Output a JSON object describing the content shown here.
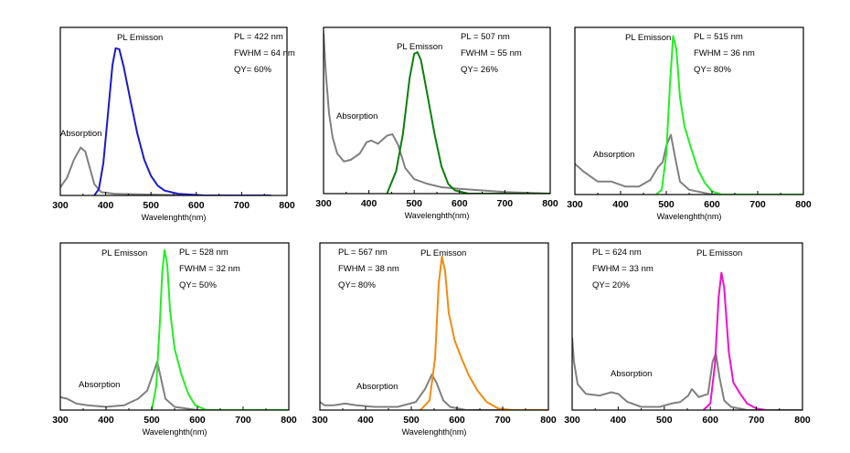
{
  "chart_data": [
    {
      "type": "line",
      "xlabel": "Wavelenghth(nm)",
      "ylabel": "",
      "xlim": [
        300,
        800
      ],
      "xticks": [
        300,
        400,
        500,
        600,
        700,
        800
      ],
      "ylim": [
        0,
        1
      ],
      "info": [
        "PL = 422 nm",
        "FWHM = 64 nm",
        "QY= 60%"
      ],
      "emission_label": "PL Emisson",
      "absorption_label": "Absorption",
      "series": [
        {
          "name": "Absorption",
          "color": "#808080",
          "points": [
            [
              300,
              0.05
            ],
            [
              315,
              0.11
            ],
            [
              330,
              0.22
            ],
            [
              345,
              0.295
            ],
            [
              355,
              0.27
            ],
            [
              365,
              0.17
            ],
            [
              375,
              0.07
            ],
            [
              390,
              0.02
            ],
            [
              420,
              0.01
            ],
            [
              600,
              0.0
            ],
            [
              700,
              0.0
            ],
            [
              765,
              0.0
            ]
          ]
        },
        {
          "name": "PL Emisson",
          "color": "#1a1acc",
          "points": [
            [
              375,
              0.0
            ],
            [
              385,
              0.04
            ],
            [
              395,
              0.2
            ],
            [
              405,
              0.5
            ],
            [
              415,
              0.8
            ],
            [
              422,
              0.905
            ],
            [
              430,
              0.9
            ],
            [
              440,
              0.79
            ],
            [
              455,
              0.58
            ],
            [
              470,
              0.38
            ],
            [
              485,
              0.22
            ],
            [
              500,
              0.12
            ],
            [
              515,
              0.06
            ],
            [
              530,
              0.03
            ],
            [
              560,
              0.01
            ],
            [
              620,
              0.0
            ],
            [
              765,
              0.0
            ]
          ]
        }
      ]
    },
    {
      "type": "line",
      "xlabel": "Wavelenghth(nm)",
      "ylabel": "",
      "xlim": [
        300,
        800
      ],
      "xticks": [
        300,
        400,
        500,
        600,
        700,
        800
      ],
      "ylim": [
        0,
        1
      ],
      "info": [
        "PL = 507 nm",
        "FWHM = 55 nm",
        "QY= 26%"
      ],
      "emission_label": "PL Emisson",
      "absorption_label": "Absorption",
      "series": [
        {
          "name": "Absorption",
          "color": "#808080",
          "points": [
            [
              300,
              1.0
            ],
            [
              305,
              0.75
            ],
            [
              312,
              0.5
            ],
            [
              320,
              0.35
            ],
            [
              330,
              0.25
            ],
            [
              345,
              0.2
            ],
            [
              360,
              0.21
            ],
            [
              380,
              0.25
            ],
            [
              395,
              0.32
            ],
            [
              405,
              0.33
            ],
            [
              420,
              0.31
            ],
            [
              440,
              0.36
            ],
            [
              452,
              0.37
            ],
            [
              465,
              0.3
            ],
            [
              480,
              0.16
            ],
            [
              500,
              0.09
            ],
            [
              530,
              0.06
            ],
            [
              560,
              0.04
            ],
            [
              600,
              0.03
            ],
            [
              650,
              0.02
            ],
            [
              700,
              0.01
            ],
            [
              800,
              0.0
            ]
          ]
        },
        {
          "name": "PL Emisson",
          "color": "#0b7f0b",
          "points": [
            [
              440,
              0.0
            ],
            [
              460,
              0.14
            ],
            [
              475,
              0.37
            ],
            [
              490,
              0.72
            ],
            [
              500,
              0.87
            ],
            [
              507,
              0.88
            ],
            [
              515,
              0.83
            ],
            [
              530,
              0.6
            ],
            [
              545,
              0.37
            ],
            [
              560,
              0.17
            ],
            [
              575,
              0.06
            ],
            [
              590,
              0.02
            ],
            [
              620,
              0.0
            ],
            [
              800,
              0.0
            ]
          ]
        }
      ]
    },
    {
      "type": "line",
      "xlabel": "Wavelenghth(nm)",
      "ylabel": "",
      "xlim": [
        300,
        800
      ],
      "xticks": [
        300,
        400,
        500,
        600,
        700,
        800
      ],
      "ylim": [
        0,
        1
      ],
      "info": [
        "PL = 515 nm",
        "FWHM = 36 nm",
        "QY= 80%"
      ],
      "emission_label": "PL Emisson",
      "absorption_label": "Absorption",
      "series": [
        {
          "name": "Absorption",
          "color": "#808080",
          "points": [
            [
              300,
              0.19
            ],
            [
              320,
              0.14
            ],
            [
              350,
              0.08
            ],
            [
              380,
              0.08
            ],
            [
              410,
              0.05
            ],
            [
              440,
              0.05
            ],
            [
              465,
              0.09
            ],
            [
              482,
              0.17
            ],
            [
              492,
              0.2
            ],
            [
              500,
              0.3
            ],
            [
              510,
              0.37
            ],
            [
              520,
              0.22
            ],
            [
              530,
              0.08
            ],
            [
              550,
              0.03
            ],
            [
              600,
              0.0
            ],
            [
              800,
              0.0
            ]
          ]
        },
        {
          "name": "PL Emisson",
          "color": "#22ee22",
          "points": [
            [
              478,
              0.0
            ],
            [
              490,
              0.03
            ],
            [
              500,
              0.25
            ],
            [
              508,
              0.68
            ],
            [
              515,
              0.98
            ],
            [
              522,
              0.9
            ],
            [
              530,
              0.6
            ],
            [
              540,
              0.42
            ],
            [
              555,
              0.28
            ],
            [
              570,
              0.15
            ],
            [
              585,
              0.07
            ],
            [
              600,
              0.02
            ],
            [
              620,
              0.0
            ],
            [
              800,
              0.0
            ]
          ]
        }
      ]
    },
    {
      "type": "line",
      "xlabel": "Wavelenghth(nm)",
      "ylabel": "",
      "xlim": [
        300,
        800
      ],
      "xticks": [
        300,
        400,
        500,
        600,
        700,
        800
      ],
      "ylim": [
        0,
        1
      ],
      "info": [
        "PL = 528 nm",
        "FWHM = 32 nm",
        "QY= 50%"
      ],
      "emission_label": "PL Emisson",
      "absorption_label": "Absorption",
      "series": [
        {
          "name": "Absorption",
          "color": "#808080",
          "points": [
            [
              300,
              0.08
            ],
            [
              315,
              0.07
            ],
            [
              335,
              0.04
            ],
            [
              360,
              0.03
            ],
            [
              400,
              0.02
            ],
            [
              440,
              0.03
            ],
            [
              470,
              0.07
            ],
            [
              490,
              0.12
            ],
            [
              505,
              0.24
            ],
            [
              512,
              0.3
            ],
            [
              520,
              0.2
            ],
            [
              530,
              0.07
            ],
            [
              550,
              0.02
            ],
            [
              600,
              0.0
            ],
            [
              800,
              0.0
            ]
          ]
        },
        {
          "name": "PL Emisson",
          "color": "#22ee22",
          "points": [
            [
              500,
              0.0
            ],
            [
              510,
              0.15
            ],
            [
              518,
              0.55
            ],
            [
              523,
              0.85
            ],
            [
              528,
              0.99
            ],
            [
              534,
              0.9
            ],
            [
              540,
              0.62
            ],
            [
              550,
              0.38
            ],
            [
              565,
              0.22
            ],
            [
              580,
              0.1
            ],
            [
              595,
              0.03
            ],
            [
              620,
              0.0
            ],
            [
              800,
              0.0
            ]
          ]
        }
      ]
    },
    {
      "type": "line",
      "xlabel": "Wavelenghth(nm)",
      "ylabel": "",
      "xlim": [
        300,
        800
      ],
      "xticks": [
        300,
        400,
        500,
        600,
        700,
        800
      ],
      "ylim": [
        0,
        1
      ],
      "info": [
        "PL = 567 nm",
        "FWHM = 38 nm",
        "QY= 80%"
      ],
      "emission_label": "PL Emisson",
      "absorption_label": "Absorption",
      "series": [
        {
          "name": "Absorption",
          "color": "#808080",
          "points": [
            [
              300,
              0.05
            ],
            [
              310,
              0.03
            ],
            [
              330,
              0.03
            ],
            [
              355,
              0.04
            ],
            [
              380,
              0.03
            ],
            [
              420,
              0.02
            ],
            [
              470,
              0.02
            ],
            [
              510,
              0.05
            ],
            [
              530,
              0.13
            ],
            [
              545,
              0.22
            ],
            [
              555,
              0.17
            ],
            [
              570,
              0.06
            ],
            [
              585,
              0.02
            ],
            [
              620,
              0.0
            ],
            [
              800,
              0.0
            ]
          ]
        },
        {
          "name": "PL Emisson",
          "color": "#f28a10",
          "points": [
            [
              520,
              0.0
            ],
            [
              540,
              0.06
            ],
            [
              552,
              0.32
            ],
            [
              560,
              0.78
            ],
            [
              567,
              0.95
            ],
            [
              574,
              0.86
            ],
            [
              582,
              0.6
            ],
            [
              595,
              0.43
            ],
            [
              610,
              0.32
            ],
            [
              625,
              0.22
            ],
            [
              645,
              0.12
            ],
            [
              665,
              0.05
            ],
            [
              690,
              0.01
            ],
            [
              720,
              0.0
            ],
            [
              800,
              0.0
            ]
          ]
        }
      ]
    },
    {
      "type": "line",
      "xlabel": "",
      "ylabel": "",
      "xlim": [
        300,
        800
      ],
      "xticks": [
        300,
        400,
        500,
        600,
        700,
        800
      ],
      "ylim": [
        0,
        1
      ],
      "info": [
        "PL = 624 nm",
        "FWHM = 33 nm",
        "QY= 20%"
      ],
      "emission_label": "PL Emisson",
      "absorption_label": "Absorption",
      "series": [
        {
          "name": "Absorption",
          "color": "#808080",
          "points": [
            [
              300,
              0.45
            ],
            [
              304,
              0.3
            ],
            [
              312,
              0.16
            ],
            [
              330,
              0.1
            ],
            [
              360,
              0.09
            ],
            [
              385,
              0.11
            ],
            [
              400,
              0.1
            ],
            [
              420,
              0.05
            ],
            [
              450,
              0.02
            ],
            [
              490,
              0.02
            ],
            [
              515,
              0.04
            ],
            [
              535,
              0.05
            ],
            [
              552,
              0.09
            ],
            [
              560,
              0.13
            ],
            [
              575,
              0.08
            ],
            [
              595,
              0.1
            ],
            [
              605,
              0.3
            ],
            [
              612,
              0.35
            ],
            [
              620,
              0.2
            ],
            [
              630,
              0.06
            ],
            [
              645,
              0.02
            ],
            [
              680,
              0.0
            ],
            [
              800,
              0.0
            ]
          ]
        },
        {
          "name": "PL Emisson",
          "color": "#ee11cc",
          "points": [
            [
              585,
              0.0
            ],
            [
              600,
              0.04
            ],
            [
              610,
              0.28
            ],
            [
              618,
              0.7
            ],
            [
              624,
              0.85
            ],
            [
              630,
              0.76
            ],
            [
              640,
              0.36
            ],
            [
              650,
              0.17
            ],
            [
              665,
              0.1
            ],
            [
              680,
              0.04
            ],
            [
              700,
              0.01
            ],
            [
              720,
              0.0
            ]
          ]
        }
      ]
    }
  ]
}
